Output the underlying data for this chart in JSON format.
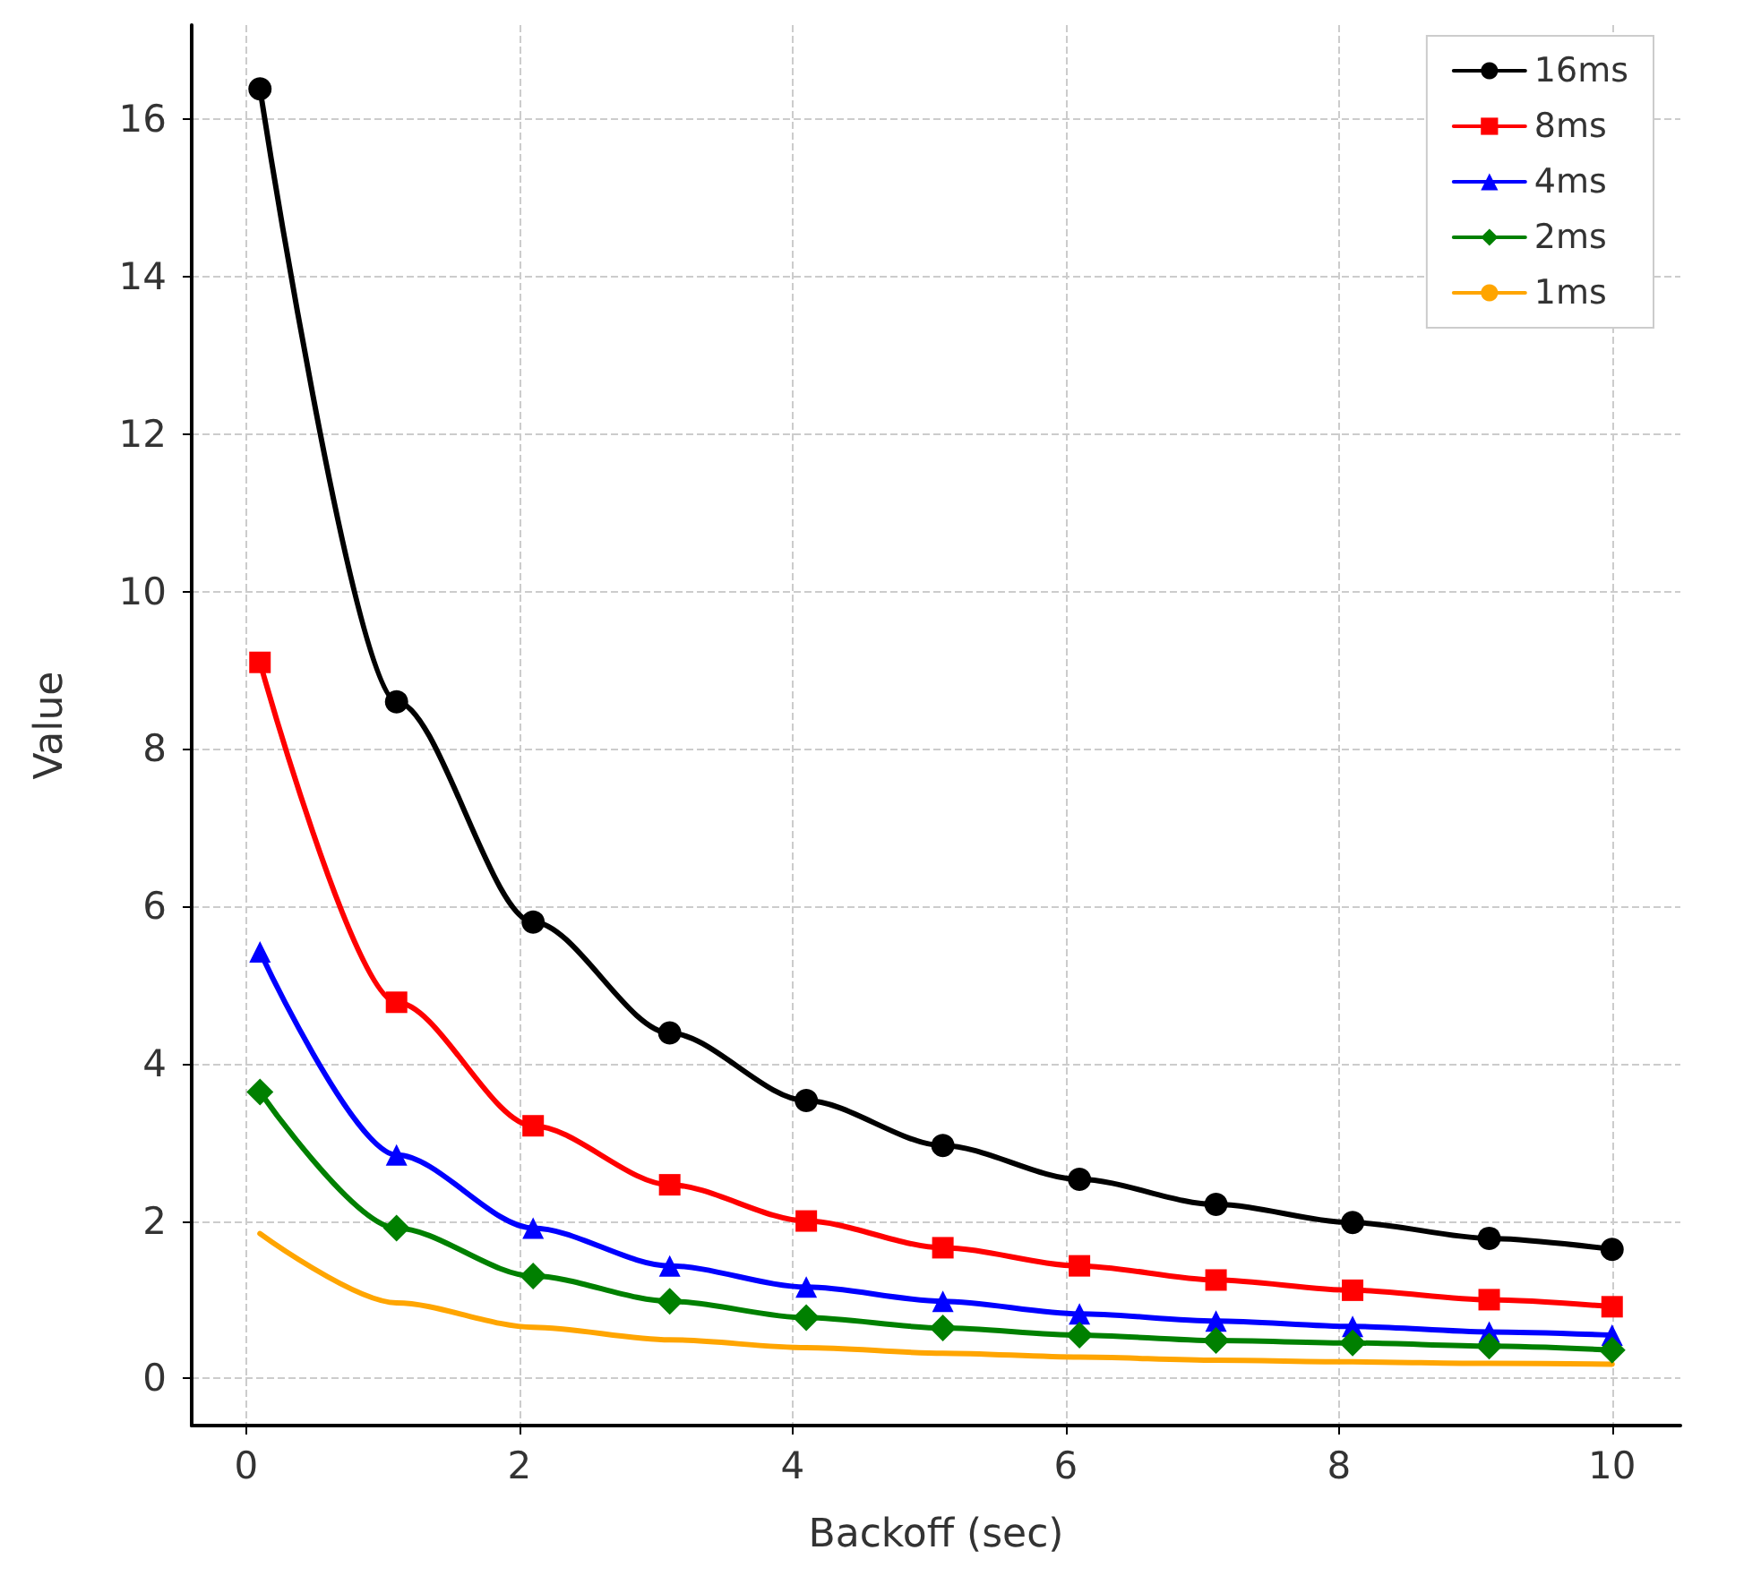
{
  "chart_data": {
    "type": "line",
    "xlabel": "Backoff (sec)",
    "ylabel": "Value",
    "x": [
      0.1,
      1.1,
      2.1,
      3.1,
      4.1,
      5.1,
      6.1,
      7.1,
      8.1,
      9.1,
      10
    ],
    "series": [
      {
        "name": "16ms",
        "color": "#000000",
        "marker": "circle",
        "values": [
          16.39,
          8.6,
          5.8,
          4.39,
          3.53,
          2.96,
          2.53,
          2.21,
          1.98,
          1.78,
          1.64
        ]
      },
      {
        "name": "8ms",
        "color": "#ff0000",
        "marker": "square",
        "values": [
          9.1,
          4.78,
          3.21,
          2.46,
          2.0,
          1.66,
          1.43,
          1.25,
          1.12,
          1.0,
          0.91
        ]
      },
      {
        "name": "4ms",
        "color": "#0000ff",
        "marker": "triangle",
        "values": [
          5.42,
          2.84,
          1.91,
          1.43,
          1.16,
          0.98,
          0.82,
          0.73,
          0.66,
          0.59,
          0.55
        ]
      },
      {
        "name": "2ms",
        "color": "#008000",
        "marker": "diamond",
        "values": [
          3.64,
          1.91,
          1.3,
          0.98,
          0.77,
          0.64,
          0.55,
          0.48,
          0.45,
          0.41,
          0.36
        ]
      },
      {
        "name": "1ms",
        "color": "#ffa500",
        "marker": "none",
        "values": [
          1.84,
          0.96,
          0.65,
          0.49,
          0.39,
          0.32,
          0.27,
          0.23,
          0.21,
          0.19,
          0.18
        ]
      }
    ],
    "xlim": [
      -0.4,
      10.5
    ],
    "xticks": [
      0,
      2,
      4,
      6,
      8,
      10
    ],
    "ylim": [
      -0.6,
      17.2
    ],
    "yticks": [
      0,
      2,
      4,
      6,
      8,
      10,
      12,
      14,
      16
    ],
    "grid": true,
    "legend": "top right",
    "line_style": "solid"
  }
}
